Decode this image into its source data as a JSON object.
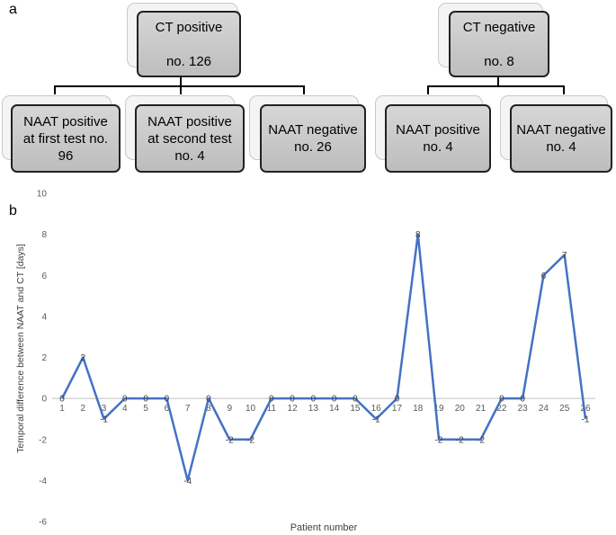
{
  "panel_a": {
    "letter": "a",
    "roots": [
      {
        "line1": "CT positive",
        "line2": "no. 126"
      },
      {
        "line1": "CT negative",
        "line2": "no. 8"
      }
    ],
    "children": [
      {
        "text": "NAAT positive\nat first test no.\n96"
      },
      {
        "text": "NAAT positive\nat second test\nno. 4"
      },
      {
        "text": "NAAT negative\nno. 26"
      },
      {
        "text": "NAAT positive\nno. 4"
      },
      {
        "text": "NAAT negative\nno. 4"
      }
    ]
  },
  "panel_b": {
    "letter": "b"
  },
  "chart_data": {
    "type": "line",
    "title": "",
    "xlabel": "Patient number",
    "ylabel": "Temporal difference between NAAT and CT [days]",
    "ylim": [
      -6,
      10
    ],
    "yticks": [
      -6,
      -4,
      -2,
      0,
      2,
      4,
      6,
      8,
      10
    ],
    "categories": [
      "1",
      "2",
      "3",
      "4",
      "5",
      "6",
      "7",
      "8",
      "9",
      "10",
      "11",
      "12",
      "13",
      "14",
      "15",
      "16",
      "17",
      "18",
      "19",
      "20",
      "21",
      "22",
      "23",
      "24",
      "25",
      "26"
    ],
    "series": [
      {
        "values": [
          0,
          2,
          -1,
          0,
          0,
          0,
          -4,
          0,
          -2,
          -2,
          0,
          0,
          0,
          0,
          0,
          -1,
          0,
          8,
          -2,
          -2,
          -2,
          0,
          0,
          6,
          7,
          -1
        ]
      }
    ],
    "grid": false,
    "line_color": "#4472C4"
  }
}
